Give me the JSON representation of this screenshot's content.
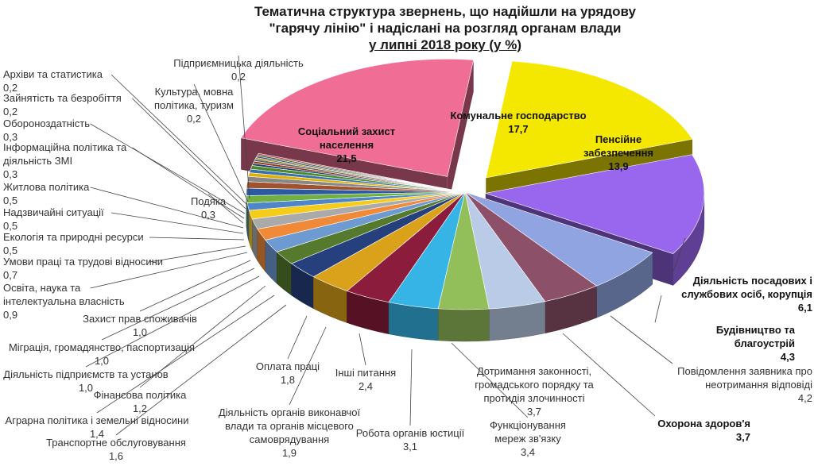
{
  "title": {
    "line1": "Тематична структура звернень, що надійшли на урядову",
    "line2": "\"гарячу лінію\" і надіслані на розгляд органам влади",
    "line3": "у липні 2018 року (у %)"
  },
  "chart_data": {
    "type": "pie",
    "title": "Тематична структура звернень, що надійшли на урядову \"гарячу лінію\" і надіслані на розгляд органам влади у липні 2018 року (у %)",
    "slices": [
      {
        "label": "Комунальне господарство",
        "value": 17.7,
        "value_text": "17,7",
        "color": "#f5e800"
      },
      {
        "label": "Пенсійне забезпечення",
        "value": 13.9,
        "value_text": "13,9",
        "color": "#9966ee"
      },
      {
        "label": "Діяльність посадових і службових осіб, корупція",
        "value": 6.1,
        "value_text": "6,1",
        "color": "#8fa4e0"
      },
      {
        "label": "Будівництво та благоустрій",
        "value": 4.3,
        "value_text": "4,3",
        "color": "#8c5068"
      },
      {
        "label": "Повідомлення заявника про неотримання відповіді",
        "value": 4.2,
        "value_text": "4,2",
        "color": "#b9cbe6"
      },
      {
        "label": "Охорона здоров'я",
        "value": 3.7,
        "value_text": "3,7",
        "color": "#93bf5a"
      },
      {
        "label": "Дотримання законності, громадського порядку та протидія злочинності",
        "value": 3.7,
        "value_text": "3,7",
        "color": "#36b4e6"
      },
      {
        "label": "Функціонування мереж зв'язку",
        "value": 3.4,
        "value_text": "3,4",
        "color": "#8c1c3c"
      },
      {
        "label": "Робота органів юстиції",
        "value": 3.1,
        "value_text": "3,1",
        "color": "#d9a21a"
      },
      {
        "label": "Інші питання",
        "value": 2.4,
        "value_text": "2,4",
        "color": "#263f7d"
      },
      {
        "label": "Діяльність органів виконавчої влади та органів місцевого самоврядування",
        "value": 1.9,
        "value_text": "1,9",
        "color": "#557a2d"
      },
      {
        "label": "Оплата праці",
        "value": 1.8,
        "value_text": "1,8",
        "color": "#6e9ad2"
      },
      {
        "label": "Транспортне обслуговування",
        "value": 1.6,
        "value_text": "1,6",
        "color": "#f08a38"
      },
      {
        "label": "Аграрна політика і земельні відносини",
        "value": 1.4,
        "value_text": "1,4",
        "color": "#aaaaaa"
      },
      {
        "label": "Фінансова політика",
        "value": 1.2,
        "value_text": "1,2",
        "color": "#f5cc1a"
      },
      {
        "label": "Діяльність підприємств та установ",
        "value": 1.0,
        "value_text": "1,0",
        "color": "#4f86c8"
      },
      {
        "label": "Міграція, громадянство, паспортизація",
        "value": 1.0,
        "value_text": "1,0",
        "color": "#6fb040"
      },
      {
        "label": "Захист прав споживачів",
        "value": 1.0,
        "value_text": "1,0",
        "color": "#2b5aa0"
      },
      {
        "label": "Освіта, наука та інтелектуальна власність",
        "value": 0.9,
        "value_text": "0,9",
        "color": "#a0522d"
      },
      {
        "label": "Умови праці та трудові відносини",
        "value": 0.7,
        "value_text": "0,7",
        "color": "#888888"
      },
      {
        "label": "Екологія та природні ресурси",
        "value": 0.5,
        "value_text": "0,5",
        "color": "#e0b000"
      },
      {
        "label": "Надзвичайні ситуації",
        "value": 0.5,
        "value_text": "0,5",
        "color": "#3a6fb0"
      },
      {
        "label": "Житлова політика",
        "value": 0.5,
        "value_text": "0,5",
        "color": "#4a8a2a"
      },
      {
        "label": "Подяка",
        "value": 0.3,
        "value_text": "0,3",
        "color": "#1f3f70"
      },
      {
        "label": "Інформаційна політика та діяльність ЗМІ",
        "value": 0.3,
        "value_text": "0,3",
        "color": "#8b3a1a"
      },
      {
        "label": "Обороноздатність",
        "value": 0.3,
        "value_text": "0,3",
        "color": "#666666"
      },
      {
        "label": "Зайнятість та безробіття",
        "value": 0.2,
        "value_text": "0,2",
        "color": "#9a7a00"
      },
      {
        "label": "Архіви та статистика",
        "value": 0.2,
        "value_text": "0,2",
        "color": "#2a4a80"
      },
      {
        "label": "Культура, мовна політика, туризм",
        "value": 0.2,
        "value_text": "0,2",
        "color": "#3a5a1a"
      },
      {
        "label": "Підприємницька діяльність",
        "value": 0.2,
        "value_text": "0,2",
        "color": "#b04a50"
      },
      {
        "label": "Соціальний захист населення",
        "value": 21.5,
        "value_text": "21,5",
        "color": "#f06e96"
      }
    ]
  }
}
